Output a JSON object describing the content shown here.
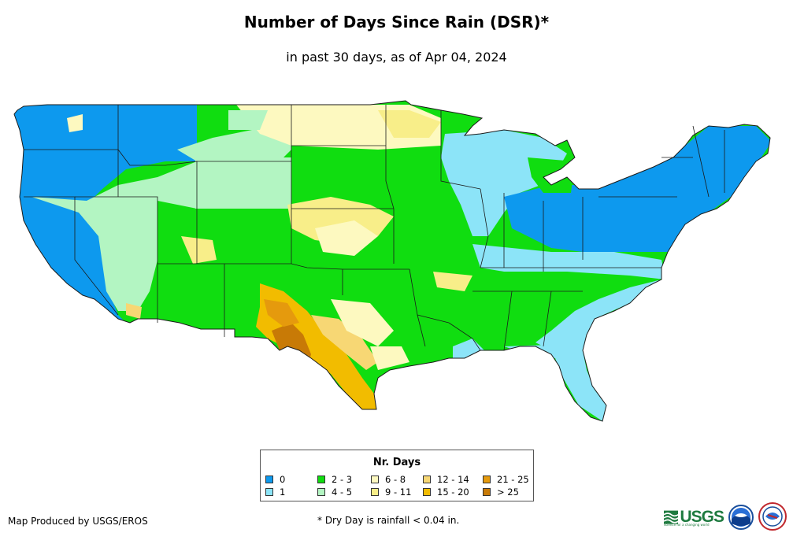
{
  "title": "Number of Days Since Rain (DSR)*",
  "subtitle": "in past 30 days, as of Apr 04, 2024",
  "legend": {
    "title": "Nr. Days",
    "items": [
      {
        "label": "0",
        "color": "#0d99ee"
      },
      {
        "label": "1",
        "color": "#8ce4f8"
      },
      {
        "label": "2 - 3",
        "color": "#10dd10"
      },
      {
        "label": "4 - 5",
        "color": "#b3f5c2"
      },
      {
        "label": "6 - 8",
        "color": "#fdf9c0"
      },
      {
        "label": "9 - 11",
        "color": "#f8ee89"
      },
      {
        "label": "12 - 14",
        "color": "#f7d774"
      },
      {
        "label": "15 - 20",
        "color": "#f2bc00"
      },
      {
        "label": "21 - 25",
        "color": "#e59a0d"
      },
      {
        "label": "> 25",
        "color": "#c87a06"
      }
    ]
  },
  "footer": {
    "producer": "Map Produced by USGS/EROS",
    "note": "* Dry Day is rainfall < 0.04 in."
  },
  "logos": {
    "usgs_text": "USGS",
    "usgs_tagline": "science for a changing world",
    "noaa_text": "NOAA",
    "nws_text": "NWS"
  },
  "colors": {
    "state_border": "#1a1a1a",
    "background": "#ffffff"
  }
}
